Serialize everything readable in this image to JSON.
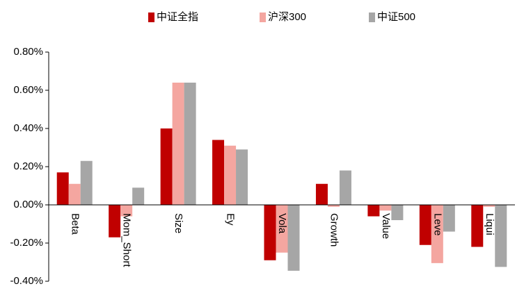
{
  "chart_data": {
    "type": "bar",
    "categories": [
      "Beta",
      "Mom_Short",
      "Size",
      "Ey",
      "Vola",
      "Growth",
      "Value",
      "Leve",
      "Liqui"
    ],
    "series": [
      {
        "name": "中证全指",
        "color": "#c00000",
        "values": [
          0.17,
          -0.17,
          0.4,
          0.34,
          -0.29,
          0.11,
          -0.06,
          -0.21,
          -0.22
        ]
      },
      {
        "name": "沪深300",
        "color": "#f4a6a0",
        "values": [
          0.11,
          -0.06,
          0.64,
          0.31,
          -0.25,
          -0.01,
          -0.03,
          -0.305,
          -0.01
        ]
      },
      {
        "name": "中证500",
        "color": "#a6a6a6",
        "values": [
          0.23,
          0.09,
          0.64,
          0.29,
          -0.345,
          0.18,
          -0.08,
          -0.14,
          -0.325
        ]
      }
    ],
    "ylim": [
      -0.4,
      0.8
    ],
    "yticks": [
      {
        "value": 0.8,
        "label": "0.80%"
      },
      {
        "value": 0.6,
        "label": "0.60%"
      },
      {
        "value": 0.4,
        "label": "0.40%"
      },
      {
        "value": 0.2,
        "label": "0.20%"
      },
      {
        "value": 0,
        "label": "0.00%"
      },
      {
        "value": -0.2,
        "label": "-0.20%"
      },
      {
        "value": -0.4,
        "label": "-0.40%"
      }
    ],
    "legend": "top"
  }
}
